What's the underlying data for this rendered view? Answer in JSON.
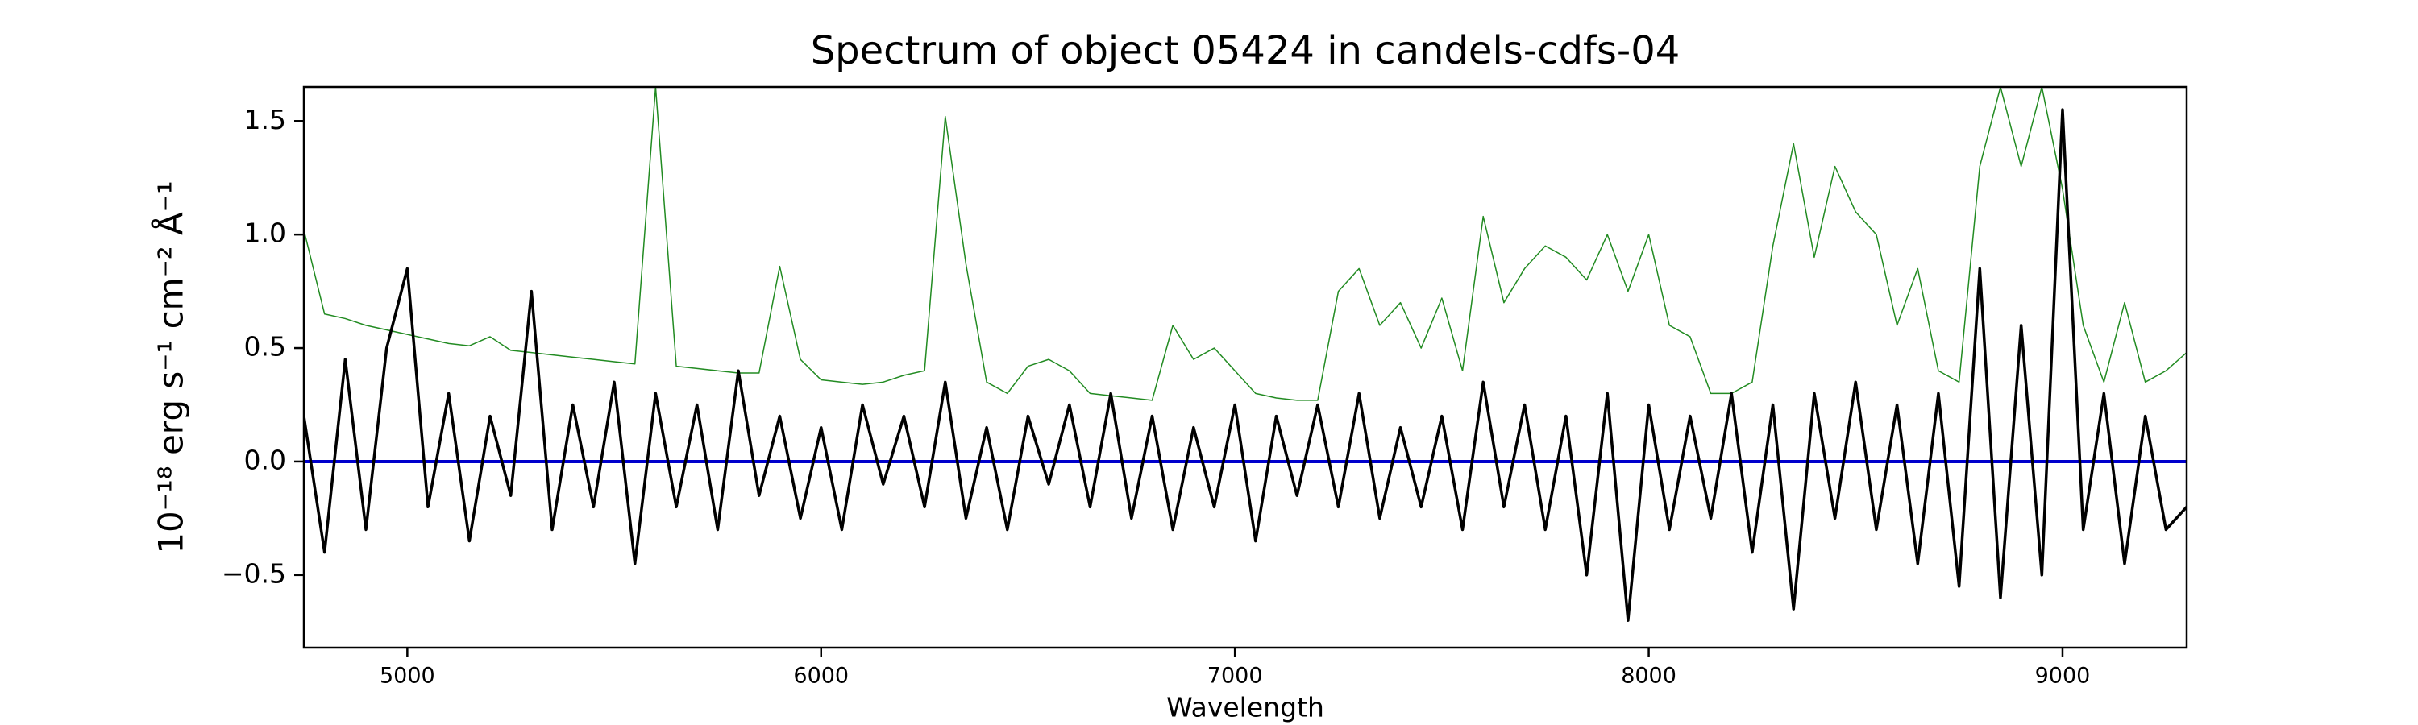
{
  "chart_data": {
    "type": "line",
    "title": "Spectrum of object 05424 in candels-cdfs-04",
    "xlabel": "Wavelength",
    "ylabel": "10⁻¹⁸ erg s⁻¹ cm⁻² Å⁻¹",
    "xlim": [
      4750,
      9300
    ],
    "xticks": [
      5000,
      6000,
      7000,
      8000,
      9000
    ],
    "ylim": [
      -0.82,
      1.65
    ],
    "yticks": [
      {
        "value": -0.5,
        "label": "−0.5"
      },
      {
        "value": 0,
        "label": "0.0"
      },
      0.5,
      {
        "value": 1.0,
        "label": "1.0"
      },
      1.5
    ],
    "grid": false,
    "series": [
      {
        "color": "#228b22",
        "width": 1.5,
        "x": [
          4750,
          4800,
          4850,
          4900,
          4950,
          5000,
          5050,
          5100,
          5150,
          5200,
          5250,
          5300,
          5350,
          5400,
          5450,
          5500,
          5550,
          5600,
          5650,
          5700,
          5750,
          5800,
          5850,
          5900,
          5950,
          6000,
          6050,
          6100,
          6150,
          6200,
          6250,
          6300,
          6350,
          6400,
          6450,
          6500,
          6550,
          6600,
          6650,
          6700,
          6750,
          6800,
          6850,
          6900,
          6950,
          7000,
          7050,
          7100,
          7150,
          7200,
          7250,
          7300,
          7350,
          7400,
          7450,
          7500,
          7550,
          7600,
          7650,
          7700,
          7750,
          7800,
          7850,
          7900,
          7950,
          8000,
          8050,
          8100,
          8150,
          8200,
          8250,
          8300,
          8350,
          8400,
          8450,
          8500,
          8550,
          8600,
          8650,
          8700,
          8750,
          8800,
          8850,
          8900,
          8950,
          9000,
          9050,
          9100,
          9150,
          9200,
          9250,
          9300
        ],
        "values": [
          1.02,
          0.65,
          0.63,
          0.6,
          0.58,
          0.56,
          0.54,
          0.52,
          0.51,
          0.55,
          0.49,
          0.48,
          0.47,
          0.46,
          0.45,
          0.44,
          0.43,
          1.65,
          0.42,
          0.41,
          0.4,
          0.39,
          0.39,
          0.86,
          0.45,
          0.36,
          0.35,
          0.34,
          0.35,
          0.38,
          0.4,
          1.52,
          0.87,
          0.35,
          0.3,
          0.42,
          0.45,
          0.4,
          0.3,
          0.29,
          0.28,
          0.27,
          0.6,
          0.45,
          0.5,
          0.4,
          0.3,
          0.28,
          0.27,
          0.27,
          0.75,
          0.85,
          0.6,
          0.7,
          0.5,
          0.72,
          0.4,
          1.08,
          0.7,
          0.85,
          0.95,
          0.9,
          0.8,
          1.0,
          0.75,
          1.0,
          0.6,
          0.55,
          0.3,
          0.3,
          0.35,
          0.95,
          1.4,
          0.9,
          1.3,
          1.1,
          1.0,
          0.6,
          0.85,
          0.4,
          0.35,
          1.3,
          1.65,
          1.3,
          1.65,
          1.2,
          0.6,
          0.35,
          0.7,
          0.35,
          0.4,
          0.48
        ]
      },
      {
        "color": "#0000cc",
        "width": 4,
        "x": [
          4750,
          9300
        ],
        "values": [
          0,
          0
        ]
      },
      {
        "color": "#000000",
        "width": 3.5,
        "x": [
          4750,
          4800,
          4850,
          4900,
          4950,
          5000,
          5050,
          5100,
          5150,
          5200,
          5250,
          5300,
          5350,
          5400,
          5450,
          5500,
          5550,
          5600,
          5650,
          5700,
          5750,
          5800,
          5850,
          5900,
          5950,
          6000,
          6050,
          6100,
          6150,
          6200,
          6250,
          6300,
          6350,
          6400,
          6450,
          6500,
          6550,
          6600,
          6650,
          6700,
          6750,
          6800,
          6850,
          6900,
          6950,
          7000,
          7050,
          7100,
          7150,
          7200,
          7250,
          7300,
          7350,
          7400,
          7450,
          7500,
          7550,
          7600,
          7650,
          7700,
          7750,
          7800,
          7850,
          7900,
          7950,
          8000,
          8050,
          8100,
          8150,
          8200,
          8250,
          8300,
          8350,
          8400,
          8450,
          8500,
          8550,
          8600,
          8650,
          8700,
          8750,
          8800,
          8850,
          8900,
          8950,
          9000,
          9050,
          9100,
          9150,
          9200,
          9250,
          9300
        ],
        "values": [
          0.2,
          -0.4,
          0.45,
          -0.3,
          0.5,
          0.85,
          -0.2,
          0.3,
          -0.35,
          0.2,
          -0.15,
          0.75,
          -0.3,
          0.25,
          -0.2,
          0.35,
          -0.45,
          0.3,
          -0.2,
          0.25,
          -0.3,
          0.4,
          -0.15,
          0.2,
          -0.25,
          0.15,
          -0.3,
          0.25,
          -0.1,
          0.2,
          -0.2,
          0.35,
          -0.25,
          0.15,
          -0.3,
          0.2,
          -0.1,
          0.25,
          -0.2,
          0.3,
          -0.25,
          0.2,
          -0.3,
          0.15,
          -0.2,
          0.25,
          -0.35,
          0.2,
          -0.15,
          0.25,
          -0.2,
          0.3,
          -0.25,
          0.15,
          -0.2,
          0.2,
          -0.3,
          0.35,
          -0.2,
          0.25,
          -0.3,
          0.2,
          -0.5,
          0.3,
          -0.7,
          0.25,
          -0.3,
          0.2,
          -0.25,
          0.3,
          -0.4,
          0.25,
          -0.65,
          0.3,
          -0.25,
          0.35,
          -0.3,
          0.25,
          -0.45,
          0.3,
          -0.55,
          0.85,
          -0.6,
          0.6,
          -0.5,
          1.55,
          -0.3,
          0.3,
          -0.45,
          0.2,
          -0.3,
          -0.2
        ]
      }
    ]
  }
}
